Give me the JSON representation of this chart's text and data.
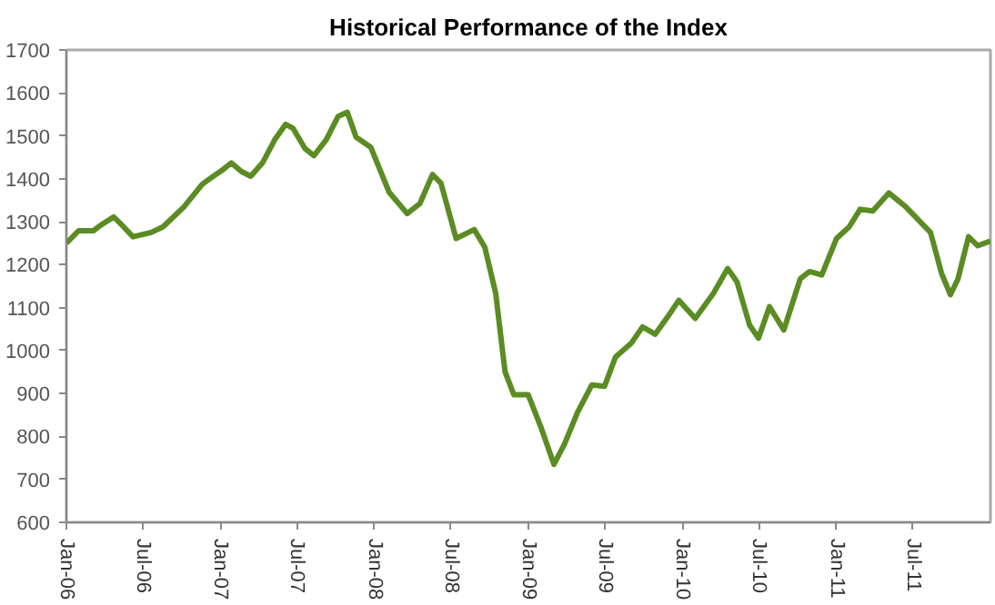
{
  "chart_data": {
    "type": "line",
    "title": "Historical Performance of the Index",
    "x": [
      "2006-01-01",
      "2006-01-30",
      "2006-03-06",
      "2006-03-28",
      "2006-04-23",
      "2006-05-10",
      "2006-06-08",
      "2006-07-21",
      "2006-08-18",
      "2006-10-07",
      "2006-11-19",
      "2006-12-11",
      "2007-01-08",
      "2007-01-27",
      "2007-02-20",
      "2007-03-14",
      "2007-04-11",
      "2007-05-10",
      "2007-06-05",
      "2007-06-22",
      "2007-07-21",
      "2007-08-11",
      "2007-09-09",
      "2007-10-07",
      "2007-10-29",
      "2007-11-19",
      "2007-12-24",
      "2008-02-05",
      "2008-03-19",
      "2008-04-18",
      "2008-05-18",
      "2008-06-07",
      "2008-07-13",
      "2008-08-25",
      "2008-09-19",
      "2008-10-15",
      "2008-11-06",
      "2008-11-27",
      "2008-12-31",
      "2009-01-30",
      "2009-03-02",
      "2009-03-27",
      "2009-04-27",
      "2009-05-31",
      "2009-06-30",
      "2009-07-26",
      "2009-09-02",
      "2009-09-28",
      "2009-10-28",
      "2009-11-27",
      "2009-12-23",
      "2010-01-31",
      "2010-03-15",
      "2010-04-18",
      "2010-05-10",
      "2010-06-09",
      "2010-06-30",
      "2010-07-26",
      "2010-08-29",
      "2010-10-07",
      "2010-10-29",
      "2010-11-27",
      "2011-01-01",
      "2011-01-31",
      "2011-02-26",
      "2011-03-28",
      "2011-05-05",
      "2011-06-13",
      "2011-08-12",
      "2011-09-07",
      "2011-09-28",
      "2011-10-16",
      "2011-11-10",
      "2011-12-02",
      "2012-01-01"
    ],
    "series": [
      {
        "color": "#5b8c23",
        "values": [
          1250,
          1279,
          1279,
          1295,
          1311,
          1295,
          1265,
          1275,
          1288,
          1335,
          1387,
          1403,
          1422,
          1437,
          1417,
          1406,
          1437,
          1491,
          1527,
          1518,
          1470,
          1454,
          1491,
          1545,
          1555,
          1497,
          1473,
          1369,
          1319,
          1342,
          1410,
          1390,
          1261,
          1282,
          1241,
          1133,
          951,
          897,
          897,
          822,
          735,
          782,
          856,
          920,
          917,
          985,
          1018,
          1055,
          1038,
          1079,
          1117,
          1075,
          1133,
          1191,
          1160,
          1059,
          1029,
          1102,
          1048,
          1167,
          1184,
          1176,
          1261,
          1288,
          1329,
          1325,
          1367,
          1336,
          1275,
          1180,
          1130,
          1167,
          1265,
          1244,
          1255
        ]
      }
    ],
    "xlim": [
      "2006-01-01",
      "2012-01-01"
    ],
    "xticks": [
      {
        "value": "2006-01-01",
        "label": "Jan-06"
      },
      {
        "value": "2006-07-01",
        "label": "Jul-06"
      },
      {
        "value": "2007-01-01",
        "label": "Jan-07"
      },
      {
        "value": "2007-07-01",
        "label": "Jul-07"
      },
      {
        "value": "2008-01-01",
        "label": "Jan-08"
      },
      {
        "value": "2008-07-01",
        "label": "Jul-08"
      },
      {
        "value": "2009-01-01",
        "label": "Jan-09"
      },
      {
        "value": "2009-07-01",
        "label": "Jul-09"
      },
      {
        "value": "2010-01-01",
        "label": "Jan-10"
      },
      {
        "value": "2010-07-01",
        "label": "Jul-10"
      },
      {
        "value": "2011-01-01",
        "label": "Jan-11"
      },
      {
        "value": "2011-07-01",
        "label": "Jul-11"
      }
    ],
    "ylim": [
      600,
      1700
    ],
    "yticks": [
      600,
      700,
      800,
      900,
      1000,
      1100,
      1200,
      1300,
      1400,
      1500,
      1600,
      1700
    ],
    "grid": false,
    "line_style": "solid"
  }
}
